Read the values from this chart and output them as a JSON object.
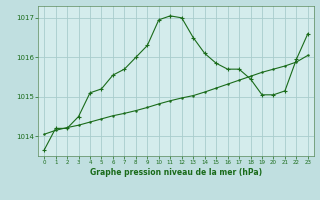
{
  "title": "Graphe pression niveau de la mer (hPa)",
  "background_color": "#c0dfe0",
  "plot_bg_color": "#d4ecec",
  "line_color": "#1a6b1a",
  "grid_color": "#a8cccc",
  "xlim": [
    -0.5,
    23.5
  ],
  "ylim": [
    1013.5,
    1017.3
  ],
  "yticks": [
    1014,
    1015,
    1016,
    1017
  ],
  "xticks": [
    0,
    1,
    2,
    3,
    4,
    5,
    6,
    7,
    8,
    9,
    10,
    11,
    12,
    13,
    14,
    15,
    16,
    17,
    18,
    19,
    20,
    21,
    22,
    23
  ],
  "series1_x": [
    0,
    1,
    2,
    3,
    4,
    5,
    6,
    7,
    8,
    9,
    10,
    11,
    12,
    13,
    14,
    15,
    16,
    17,
    18,
    19,
    20,
    21,
    22,
    23
  ],
  "series1_y": [
    1013.65,
    1014.2,
    1014.2,
    1014.5,
    1015.1,
    1015.2,
    1015.55,
    1015.7,
    1016.0,
    1016.3,
    1016.95,
    1017.05,
    1017.0,
    1016.5,
    1016.1,
    1015.85,
    1015.7,
    1015.7,
    1015.45,
    1015.05,
    1015.05,
    1015.15,
    1015.95,
    1016.6
  ],
  "series2_x": [
    0,
    1,
    2,
    3,
    4,
    5,
    6,
    7,
    8,
    9,
    10,
    11,
    12,
    13,
    14,
    15,
    16,
    17,
    18,
    19,
    20,
    21,
    22,
    23
  ],
  "series2_y": [
    1014.05,
    1014.15,
    1014.22,
    1014.28,
    1014.36,
    1014.44,
    1014.52,
    1014.58,
    1014.65,
    1014.73,
    1014.82,
    1014.9,
    1014.97,
    1015.03,
    1015.12,
    1015.22,
    1015.32,
    1015.42,
    1015.52,
    1015.62,
    1015.7,
    1015.78,
    1015.88,
    1016.05
  ]
}
